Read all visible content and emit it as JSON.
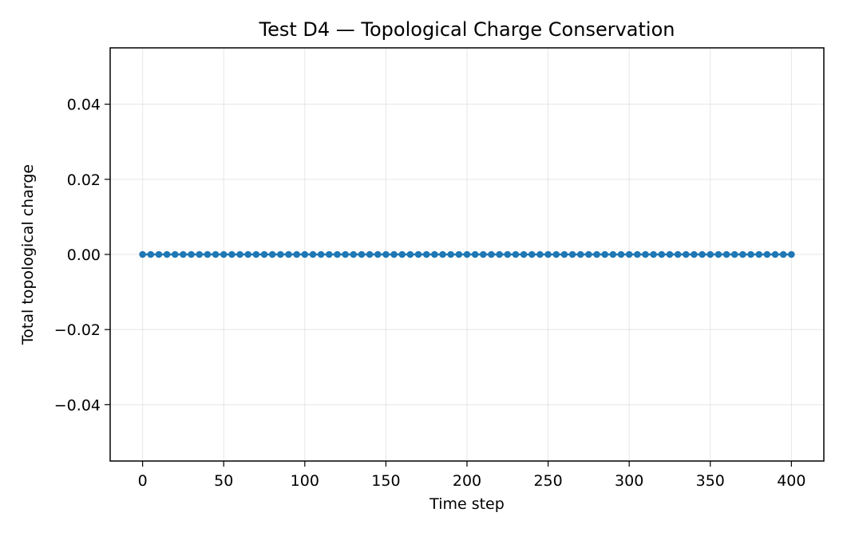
{
  "chart_data": {
    "type": "line",
    "title": "Test D4 — Topological Charge Conservation",
    "xlabel": "Time step",
    "ylabel": "Total topological charge",
    "xlim": [
      -20,
      420
    ],
    "ylim": [
      -0.055,
      0.055
    ],
    "x_ticks": [
      0,
      50,
      100,
      150,
      200,
      250,
      300,
      350,
      400
    ],
    "x_tick_labels": [
      "0",
      "50",
      "100",
      "150",
      "200",
      "250",
      "300",
      "350",
      "400"
    ],
    "y_ticks": [
      0.04,
      0.02,
      0.0,
      -0.02,
      -0.04
    ],
    "y_tick_labels": [
      "0.04",
      "0.02",
      "0.00",
      "−0.02",
      "−0.04"
    ],
    "grid": true,
    "series": [
      {
        "color": "#1f77b4",
        "marker": "circle",
        "x": [
          0,
          5,
          10,
          15,
          20,
          25,
          30,
          35,
          40,
          45,
          50,
          55,
          60,
          65,
          70,
          75,
          80,
          85,
          90,
          95,
          100,
          105,
          110,
          115,
          120,
          125,
          130,
          135,
          140,
          145,
          150,
          155,
          160,
          165,
          170,
          175,
          180,
          185,
          190,
          195,
          200,
          205,
          210,
          215,
          220,
          225,
          230,
          235,
          240,
          245,
          250,
          255,
          260,
          265,
          270,
          275,
          280,
          285,
          290,
          295,
          300,
          305,
          310,
          315,
          320,
          325,
          330,
          335,
          340,
          345,
          350,
          355,
          360,
          365,
          370,
          375,
          380,
          385,
          390,
          395,
          400
        ],
        "y": [
          0,
          0,
          0,
          0,
          0,
          0,
          0,
          0,
          0,
          0,
          0,
          0,
          0,
          0,
          0,
          0,
          0,
          0,
          0,
          0,
          0,
          0,
          0,
          0,
          0,
          0,
          0,
          0,
          0,
          0,
          0,
          0,
          0,
          0,
          0,
          0,
          0,
          0,
          0,
          0,
          0,
          0,
          0,
          0,
          0,
          0,
          0,
          0,
          0,
          0,
          0,
          0,
          0,
          0,
          0,
          0,
          0,
          0,
          0,
          0,
          0,
          0,
          0,
          0,
          0,
          0,
          0,
          0,
          0,
          0,
          0,
          0,
          0,
          0,
          0,
          0,
          0,
          0,
          0,
          0,
          0
        ]
      }
    ]
  }
}
